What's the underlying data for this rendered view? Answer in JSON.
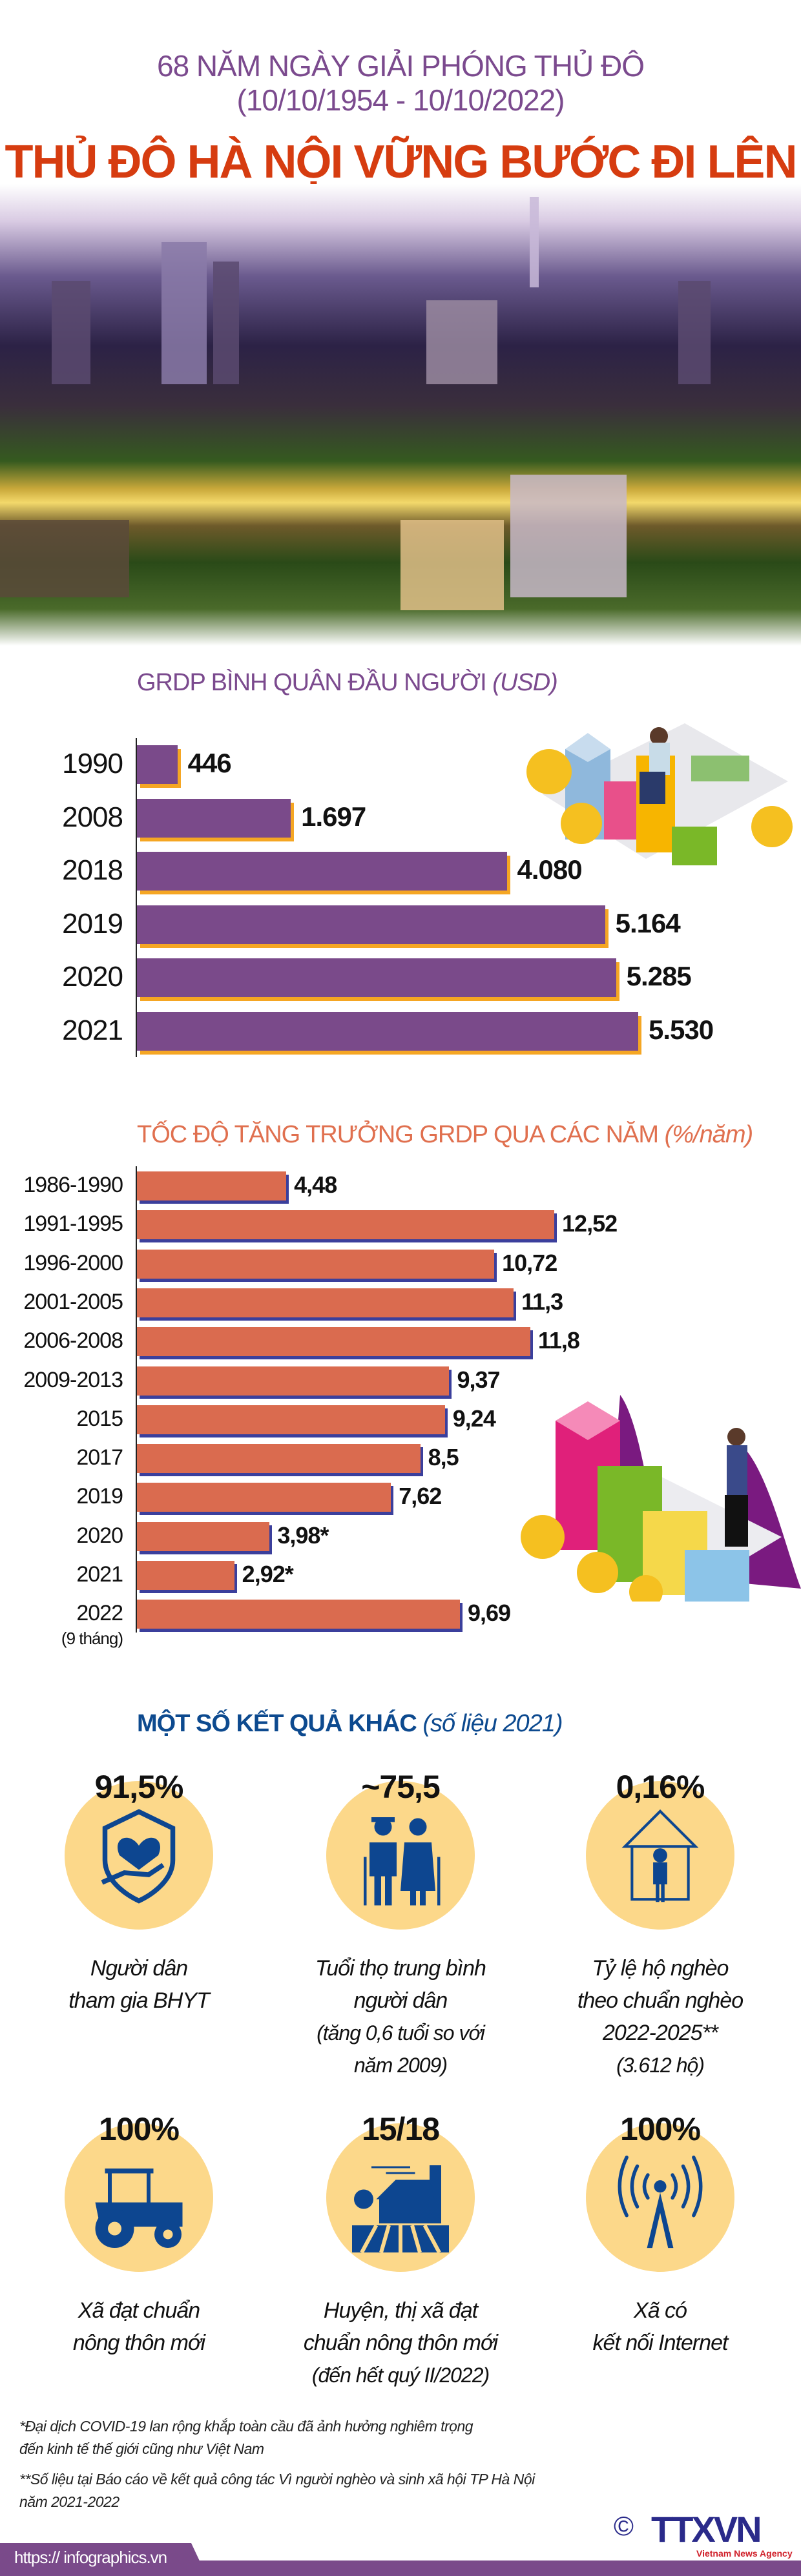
{
  "header": {
    "line1": "68 NĂM NGÀY GIẢI PHÓNG THỦ ĐÔ",
    "line2": "(10/10/1954 - 10/10/2022)",
    "title": "THỦ ĐÔ HÀ NỘI VỮNG BƯỚC ĐI LÊN"
  },
  "colors": {
    "purple": "#7a4a8a",
    "orange_shadow": "#f5a623",
    "coral": "#da6b4f",
    "blue_shadow": "#3b3f9c",
    "title_red": "#d63c10",
    "blue": "#0d4690",
    "circle": "#fcd88a"
  },
  "chart_data": [
    {
      "type": "bar",
      "orientation": "horizontal",
      "title": "GRDP BÌNH QUÂN ĐẦU NGƯỜI",
      "unit": "(USD)",
      "categories": [
        "1990",
        "2008",
        "2018",
        "2019",
        "2020",
        "2021"
      ],
      "values": [
        446,
        1697,
        4080,
        5164,
        5285,
        5530
      ],
      "labels": [
        "446",
        "1.697",
        "4.080",
        "5.164",
        "5.285",
        "5.530"
      ]
    },
    {
      "type": "bar",
      "orientation": "horizontal",
      "title": "TỐC ĐỘ TĂNG TRƯỞNG GRDP QUA CÁC NĂM",
      "unit": "(%/năm)",
      "categories": [
        "1986-1990",
        "1991-1995",
        "1996-2000",
        "2001-2005",
        "2006-2008",
        "2009-2013",
        "2015",
        "2017",
        "2019",
        "2020",
        "2021",
        "2022"
      ],
      "category_note": "(9 tháng)",
      "values": [
        4.48,
        12.52,
        10.72,
        11.3,
        11.8,
        9.37,
        9.24,
        8.5,
        7.62,
        3.98,
        2.92,
        9.69
      ],
      "labels": [
        "4,48",
        "12,52",
        "10,72",
        "11,3",
        "11,8",
        "9,37",
        "9,24",
        "8,5",
        "7,62",
        "3,98*",
        "2,92*",
        "9,69"
      ]
    }
  ],
  "results": {
    "title": "MỘT SỐ KẾT QUẢ KHÁC",
    "unit": "(số liệu 2021)",
    "items": [
      {
        "value": "91,5%",
        "icon": "health-insurance-shield-icon",
        "l1": "Người dân",
        "l2": "tham gia BHYT"
      },
      {
        "value": "~75,5",
        "icon": "elderly-couple-icon",
        "l1": "Tuổi thọ trung bình",
        "l2": "người dân",
        "s1": "(tăng 0,6 tuổi so với",
        "s2": "năm 2009)"
      },
      {
        "value": "0,16%",
        "icon": "poor-house-icon",
        "l1": "Tỷ lệ hộ nghèo",
        "l2": "theo chuẩn nghèo",
        "l3": "2022-2025**",
        "s1": "(3.612 hộ)"
      },
      {
        "value": "100%",
        "icon": "tractor-icon",
        "l1": "Xã đạt chuẩn",
        "l2": "nông thôn mới"
      },
      {
        "value": "15/18",
        "icon": "farm-icon",
        "l1": "Huyện, thị xã đạt",
        "l2": "chuẩn nông thôn mới",
        "l3": "(đến hết quý II/2022)"
      },
      {
        "value": "100%",
        "icon": "antenna-icon",
        "l1": "Xã có",
        "l2": "kết nối Internet"
      }
    ]
  },
  "footnotes": {
    "n1a": "*Đại dịch COVID-19 lan rộng khắp toàn cầu đã ảnh hưởng nghiêm trọng",
    "n1b": "đến kinh tế thế giới cũng như Việt Nam",
    "n2a": "**Số liệu tại Báo cáo về kết quả công tác Vì người nghèo và sinh xã hội TP Hà Nội",
    "n2b": "năm 2021-2022"
  },
  "footer": {
    "url": "https:// infographics.vn",
    "copyright": "©",
    "logo": "TTXVN",
    "logo_sub": "Vietnam News Agency"
  }
}
